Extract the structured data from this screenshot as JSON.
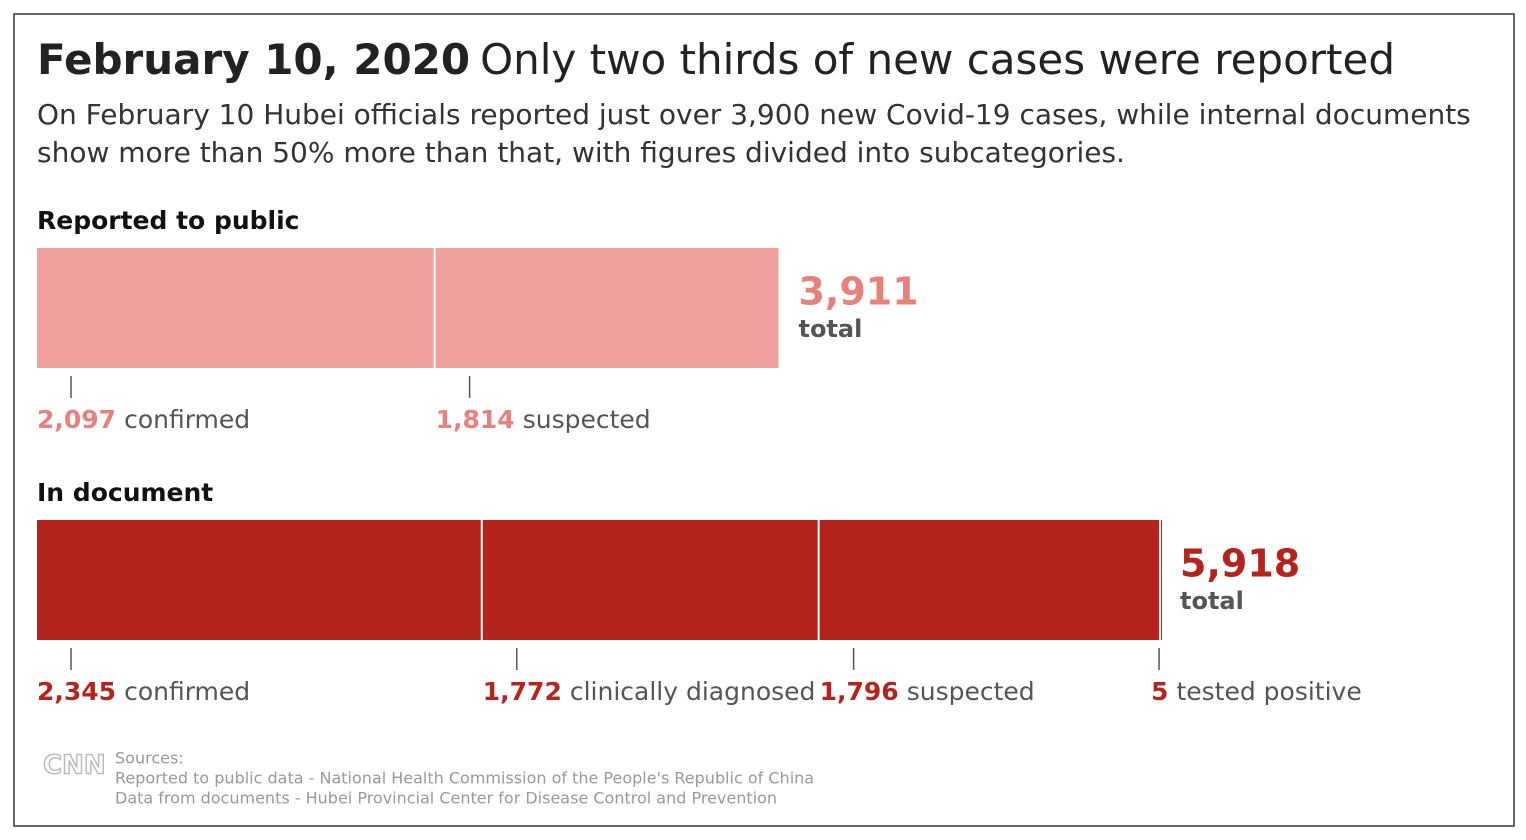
{
  "chart_data": {
    "type": "stacked-bar",
    "title": "February 10, 2020",
    "title_rest": "Only two thirds of new cases were reported",
    "subtitle": [
      "On February 10 Hubei officials reported just over 3,900 new Covid-19 cases, while internal documents",
      "show more than 50% more than that, with figures divided into subcategories."
    ],
    "groups": [
      {
        "name": "Reported to public",
        "color": "#f0a19d",
        "label_color": "#e8817b",
        "total": 3911,
        "total_label": "3,911",
        "total_text": "total",
        "categories": [
          "confirmed",
          "suspected"
        ],
        "values": [
          2097,
          1814
        ],
        "value_labels": [
          "2,097",
          "1,814"
        ]
      },
      {
        "name": "In document",
        "color": "#b5241c",
        "label_color": "#b5241c",
        "total": 5918,
        "total_label": "5,918",
        "total_text": "total",
        "categories": [
          "confirmed",
          "clinically diagnosed",
          "suspected",
          "tested positive"
        ],
        "values": [
          2345,
          1772,
          1796,
          5
        ],
        "value_labels": [
          "2,345",
          "1,772",
          "1,796",
          "5"
        ]
      }
    ],
    "logo": "CNN",
    "source_heading": "Sources:",
    "sources": [
      "Reported to public data - National Health Commission of the People's Republic of China",
      "Data from documents - Hubei Provincial Center for Disease Control and Prevention"
    ]
  }
}
